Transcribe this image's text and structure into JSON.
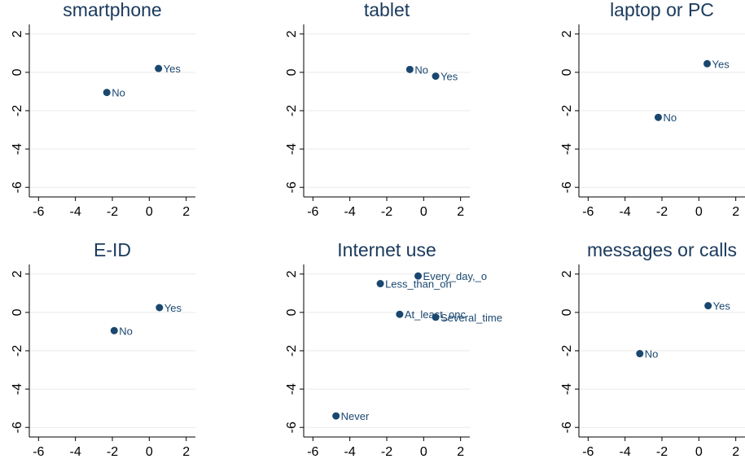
{
  "chart_data": [
    {
      "type": "scatter",
      "title": "smartphone",
      "xlim": [
        -6.5,
        2.5
      ],
      "ylim": [
        -6.5,
        2.5
      ],
      "xticks": [
        "-6",
        "-4",
        "-2",
        "0",
        "2"
      ],
      "yticks": [
        "2",
        "0",
        "-2",
        "-4",
        "-6"
      ],
      "grid": true,
      "points": [
        {
          "label": "Yes",
          "x": 0.5,
          "y": 0.2
        },
        {
          "label": "No",
          "x": -2.3,
          "y": -1.05
        }
      ]
    },
    {
      "type": "scatter",
      "title": "tablet",
      "xlim": [
        -6.5,
        2.5
      ],
      "ylim": [
        -6.5,
        2.5
      ],
      "xticks": [
        "-6",
        "-4",
        "-2",
        "0",
        "2"
      ],
      "yticks": [
        "2",
        "0",
        "-2",
        "-4",
        "-6"
      ],
      "grid": true,
      "points": [
        {
          "label": "No",
          "x": -0.75,
          "y": 0.15
        },
        {
          "label": "Yes",
          "x": 0.65,
          "y": -0.2
        }
      ]
    },
    {
      "type": "scatter",
      "title": "laptop or PC",
      "xlim": [
        -6.5,
        2.5
      ],
      "ylim": [
        -6.5,
        2.5
      ],
      "xticks": [
        "-6",
        "-4",
        "-2",
        "0",
        "2"
      ],
      "yticks": [
        "2",
        "0",
        "-2",
        "-4",
        "-6"
      ],
      "grid": true,
      "points": [
        {
          "label": "Yes",
          "x": 0.45,
          "y": 0.45
        },
        {
          "label": "No",
          "x": -2.2,
          "y": -2.35
        }
      ]
    },
    {
      "type": "scatter",
      "title": "E-ID",
      "xlim": [
        -6.5,
        2.5
      ],
      "ylim": [
        -6.5,
        2.5
      ],
      "xticks": [
        "-6",
        "-4",
        "-2",
        "0",
        "2"
      ],
      "yticks": [
        "2",
        "0",
        "-2",
        "-4",
        "-6"
      ],
      "grid": true,
      "points": [
        {
          "label": "Yes",
          "x": 0.55,
          "y": 0.25
        },
        {
          "label": "No",
          "x": -1.9,
          "y": -0.95
        }
      ]
    },
    {
      "type": "scatter",
      "title": "Internet use",
      "xlim": [
        -6.5,
        2.5
      ],
      "ylim": [
        -6.5,
        2.5
      ],
      "xticks": [
        "-6",
        "-4",
        "-2",
        "0",
        "2"
      ],
      "yticks": [
        "2",
        "0",
        "-2",
        "-4",
        "-6"
      ],
      "grid": true,
      "points": [
        {
          "label": "Every_day,_o",
          "x": -0.3,
          "y": 1.9
        },
        {
          "label": "Less_than_on",
          "x": -2.35,
          "y": 1.5
        },
        {
          "label": "At_least_onc",
          "x": -1.3,
          "y": -0.1
        },
        {
          "label": "Several_time",
          "x": 0.65,
          "y": -0.25
        },
        {
          "label": "Never",
          "x": -4.75,
          "y": -5.4
        }
      ]
    },
    {
      "type": "scatter",
      "title": "messages or calls",
      "xlim": [
        -6.5,
        2.5
      ],
      "ylim": [
        -6.5,
        2.5
      ],
      "xticks": [
        "-6",
        "-4",
        "-2",
        "0",
        "2"
      ],
      "yticks": [
        "2",
        "0",
        "-2",
        "-4",
        "-6"
      ],
      "grid": true,
      "points": [
        {
          "label": "Yes",
          "x": 0.5,
          "y": 0.35
        },
        {
          "label": "No",
          "x": -3.2,
          "y": -2.15
        }
      ]
    }
  ]
}
